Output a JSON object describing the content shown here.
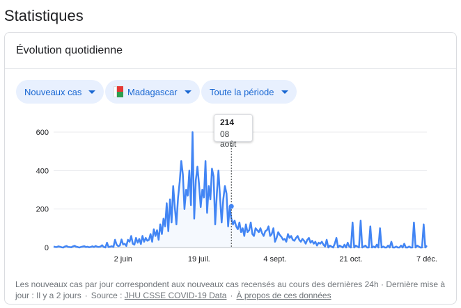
{
  "page": {
    "title": "Statistiques"
  },
  "card": {
    "title": "Évolution quotidienne"
  },
  "filters": {
    "metric": "Nouveaux cas",
    "location": "Madagascar",
    "period": "Toute la période"
  },
  "tooltip": {
    "value": "214",
    "date": "08 août"
  },
  "footer": {
    "text": "Les nouveaux cas par jour correspondent aux nouveaux cas recensés au cours des dernières 24h · Dernière mise à jour : Il y a 2 jours",
    "source_prefix": "Source :",
    "source_link": "JHU CSSE COVID-19 Data",
    "about_link": "À propos de ces données"
  },
  "colors": {
    "line": "#4285f4",
    "chip_bg": "#e8f0fe",
    "chip_text": "#1967d2"
  },
  "chart_data": {
    "type": "line",
    "title": "",
    "xlabel": "",
    "ylabel": "",
    "ylim": [
      0,
      620
    ],
    "yticks": [
      "600",
      "400",
      "200",
      "0"
    ],
    "ytick_values": [
      600,
      400,
      200,
      0
    ],
    "xticks": [
      "2 juin",
      "19 juil.",
      "4 sept.",
      "21 oct.",
      "7 déc."
    ],
    "xtick_days": [
      43,
      90,
      137,
      184,
      231
    ],
    "start_date": "2020-04-21",
    "grid": true,
    "highlight": {
      "day": 110,
      "value": 214
    },
    "series": [
      {
        "name": "",
        "values": [
          5,
          3,
          2,
          6,
          4,
          1,
          0,
          5,
          8,
          3,
          2,
          1,
          6,
          9,
          4,
          2,
          0,
          3,
          5,
          7,
          2,
          4,
          1,
          3,
          6,
          2,
          8,
          4,
          3,
          5,
          12,
          3,
          0,
          25,
          2,
          4,
          7,
          3,
          40,
          15,
          7,
          10,
          42,
          16,
          20,
          8,
          40,
          30,
          60,
          20,
          15,
          50,
          25,
          45,
          18,
          60,
          30,
          50,
          35,
          40,
          70,
          30,
          95,
          60,
          90,
          40,
          120,
          70,
          150,
          110,
          230,
          85,
          250,
          130,
          320,
          210,
          120,
          260,
          340,
          450,
          380,
          200,
          300,
          270,
          400,
          220,
          600,
          150,
          350,
          420,
          330,
          210,
          300,
          260,
          450,
          180,
          320,
          250,
          410,
          370,
          120,
          280,
          400,
          260,
          130,
          250,
          320,
          280,
          110,
          214,
          150,
          120,
          140,
          110,
          95,
          130,
          80,
          100,
          60,
          120,
          80,
          90,
          130,
          70,
          60,
          100,
          90,
          80,
          100,
          75,
          60,
          85,
          90,
          110,
          60,
          70,
          100,
          30,
          50,
          80,
          65,
          55,
          40,
          45,
          30,
          70,
          50,
          60,
          40,
          35,
          50,
          60,
          40,
          30,
          45,
          35,
          20,
          40,
          50,
          25,
          35,
          20,
          30,
          10,
          25,
          20,
          30,
          15,
          5,
          40,
          0,
          10,
          5,
          0,
          20,
          50,
          0,
          10,
          5,
          0,
          15,
          0,
          25,
          5,
          0,
          130,
          0,
          10,
          5,
          0,
          140,
          0,
          5,
          10,
          0,
          0,
          110,
          0,
          5,
          0,
          15,
          0,
          100,
          0,
          5,
          0,
          0,
          10,
          0,
          30,
          0,
          0,
          5,
          0,
          0,
          10,
          0,
          20,
          0,
          0,
          5,
          0,
          0,
          130,
          0,
          10,
          5,
          0,
          0,
          120,
          0,
          10
        ]
      }
    ]
  }
}
